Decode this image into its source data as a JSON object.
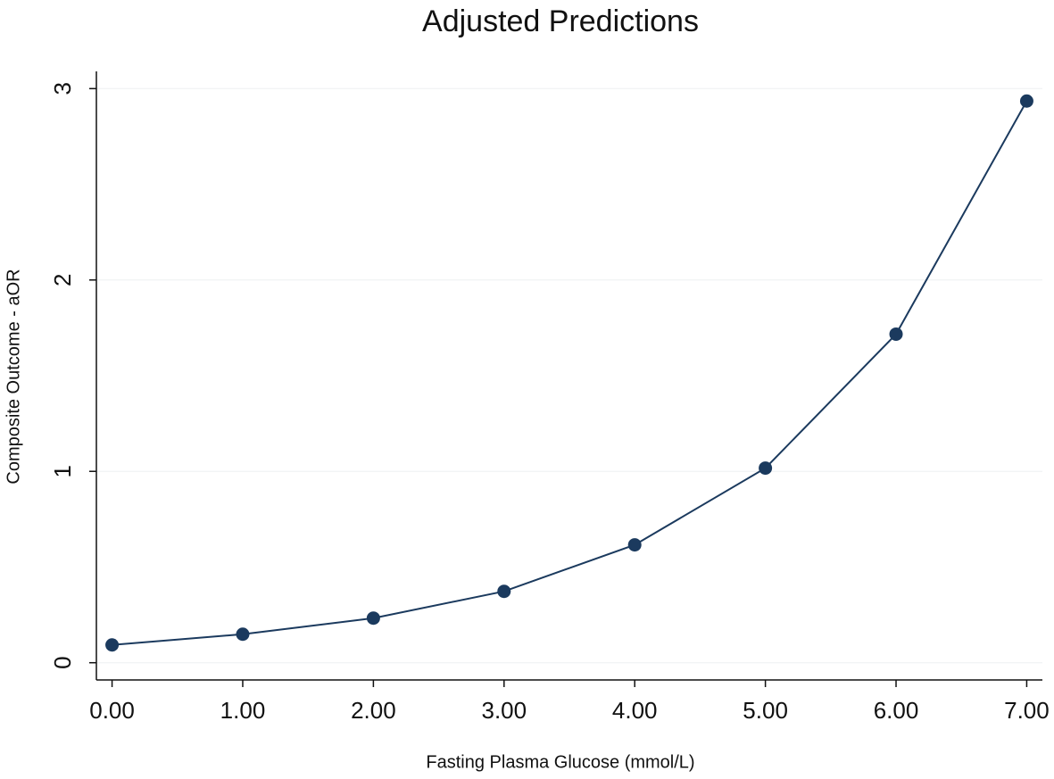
{
  "chart_data": {
    "type": "line",
    "title": "Adjusted Predictions",
    "x_label": "Fasting Plasma Glucose (mmol/L)",
    "y_label": "Composite Outcome - aOR",
    "x": [
      0,
      1,
      2,
      3,
      4,
      5,
      6,
      7
    ],
    "series": [
      {
        "name": "Composite Outcome - aOR",
        "color": "#1b3a5e",
        "values": [
          0.093,
          0.149,
          0.233,
          0.373,
          0.616,
          1.017,
          1.717,
          2.935
        ]
      }
    ],
    "xlim": [
      -0.12,
      7.12
    ],
    "ylim": [
      -0.09,
      3.09
    ],
    "xticks": [
      {
        "value": 0,
        "label": "0.00"
      },
      {
        "value": 1,
        "label": "1.00"
      },
      {
        "value": 2,
        "label": "2.00"
      },
      {
        "value": 3,
        "label": "3.00"
      },
      {
        "value": 4,
        "label": "4.00"
      },
      {
        "value": 5,
        "label": "5.00"
      },
      {
        "value": 6,
        "label": "6.00"
      },
      {
        "value": 7,
        "label": "7.00"
      }
    ],
    "yticks": [
      0,
      1,
      2,
      3
    ],
    "grid": true
  }
}
